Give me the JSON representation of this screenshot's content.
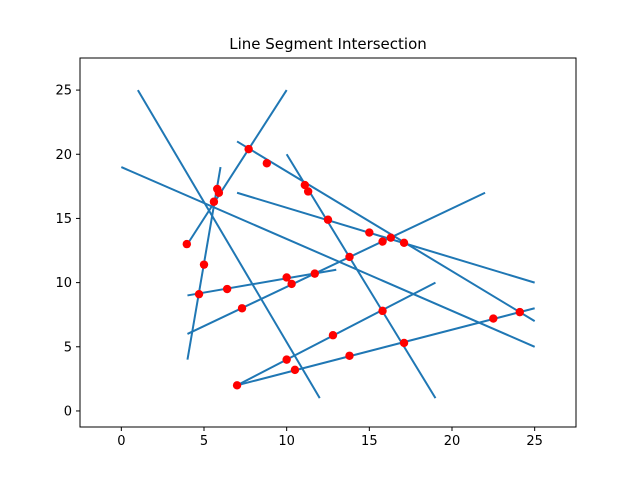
{
  "chart_data": {
    "type": "line",
    "title": "Line Segment Intersection",
    "xlabel": "",
    "ylabel": "",
    "xlim": [
      -2.5,
      27.5
    ],
    "ylim": [
      -1.25,
      27.5
    ],
    "xticks": [
      0,
      5,
      10,
      15,
      20,
      25
    ],
    "yticks": [
      0,
      5,
      10,
      15,
      20,
      25
    ],
    "grid": false,
    "line_color": "#1f77b4",
    "point_color": "#ff0000",
    "segments": [
      {
        "x": [
          1,
          12
        ],
        "y": [
          25,
          1
        ]
      },
      {
        "x": [
          4,
          6
        ],
        "y": [
          4,
          19
        ]
      },
      {
        "x": [
          4,
          10
        ],
        "y": [
          13,
          25
        ]
      },
      {
        "x": [
          0,
          25
        ],
        "y": [
          19,
          5
        ]
      },
      {
        "x": [
          7,
          25
        ],
        "y": [
          21,
          7
        ]
      },
      {
        "x": [
          7,
          25
        ],
        "y": [
          17,
          10
        ]
      },
      {
        "x": [
          10,
          19
        ],
        "y": [
          20,
          1
        ]
      },
      {
        "x": [
          4,
          22
        ],
        "y": [
          6,
          17
        ]
      },
      {
        "x": [
          4,
          13
        ],
        "y": [
          9,
          11
        ]
      },
      {
        "x": [
          7,
          19
        ],
        "y": [
          2,
          10
        ]
      },
      {
        "x": [
          7,
          25
        ],
        "y": [
          2,
          8
        ]
      }
    ],
    "intersections": {
      "x": [
        3.96,
        5.0,
        4.7,
        5.8,
        5.9,
        5.6,
        6.4,
        7.3,
        7.7,
        8.8,
        10.0,
        10.3,
        10.5,
        11.1,
        11.3,
        11.7,
        12.5,
        12.8,
        13.8,
        13.8,
        15.0,
        15.8,
        15.8,
        16.3,
        17.1,
        17.1,
        22.5,
        24.1,
        10.0,
        7.0
      ],
      "y": [
        13.0,
        11.4,
        9.1,
        17.3,
        17.0,
        16.3,
        9.5,
        8.0,
        20.4,
        19.3,
        10.4,
        9.9,
        3.2,
        17.6,
        17.1,
        10.7,
        14.9,
        5.9,
        12.0,
        4.3,
        13.9,
        13.2,
        7.8,
        13.5,
        13.1,
        5.3,
        7.2,
        7.7,
        4.0,
        2.0
      ]
    }
  }
}
